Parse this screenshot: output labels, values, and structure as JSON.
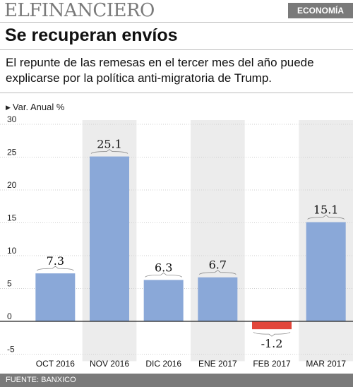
{
  "header": {
    "brand": "ELFINANCIERO",
    "section": "ECONOMÍA"
  },
  "headline": "Se recuperan envíos",
  "subtitle": "El repunte de las remesas en el tercer mes del año puede explicarse por la política anti-migratoria de Trump.",
  "source": "FUENTE: BANXICO",
  "colors": {
    "positive": "#8aa8d8",
    "negative": "#e2463a",
    "header_gray": "#7a7a7a",
    "grid_col": "#ececec"
  },
  "chart_data": {
    "type": "bar",
    "ylabel": "Var. Anual %",
    "categories": [
      "OCT 2016",
      "NOV 2016",
      "DIC 2016",
      "ENE 2017",
      "FEB 2017",
      "MAR 2017"
    ],
    "values": [
      7.3,
      25.1,
      6.3,
      6.7,
      -1.2,
      15.1
    ],
    "data_labels": [
      "7.3",
      "25.1",
      "6.3",
      "6.7",
      "-1.2",
      "15.1"
    ],
    "yticks": [
      30,
      25,
      20,
      15,
      10,
      5,
      0,
      -5
    ],
    "ylim": [
      -5,
      30
    ],
    "grid": true
  }
}
